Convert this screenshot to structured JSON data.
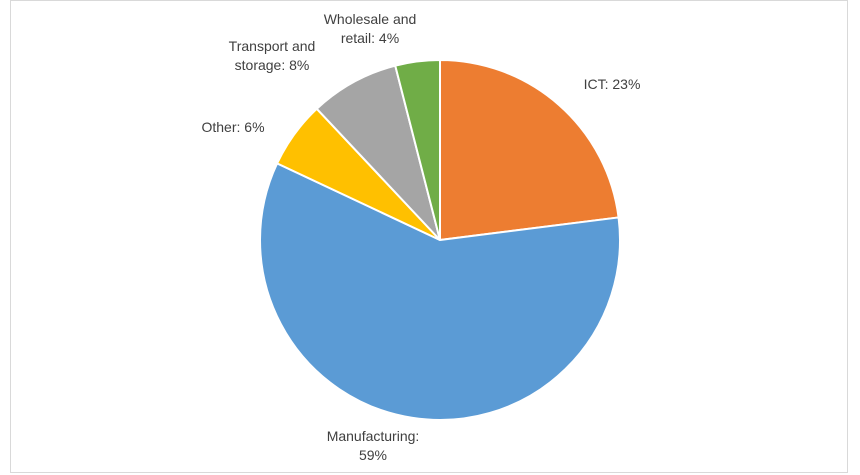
{
  "chart_data": {
    "type": "pie",
    "values": [
      23,
      59,
      6,
      8,
      4
    ],
    "value_labels": [
      "ICT: 23%",
      "Manufacturing: 59%",
      "Other: 6%",
      "Transport and storage: 8%",
      "Wholesale and retail: 4%"
    ],
    "colors": [
      "#ed7d31",
      "#5b9bd5",
      "#ffc000",
      "#a5a5a5",
      "#70ad47"
    ]
  }
}
